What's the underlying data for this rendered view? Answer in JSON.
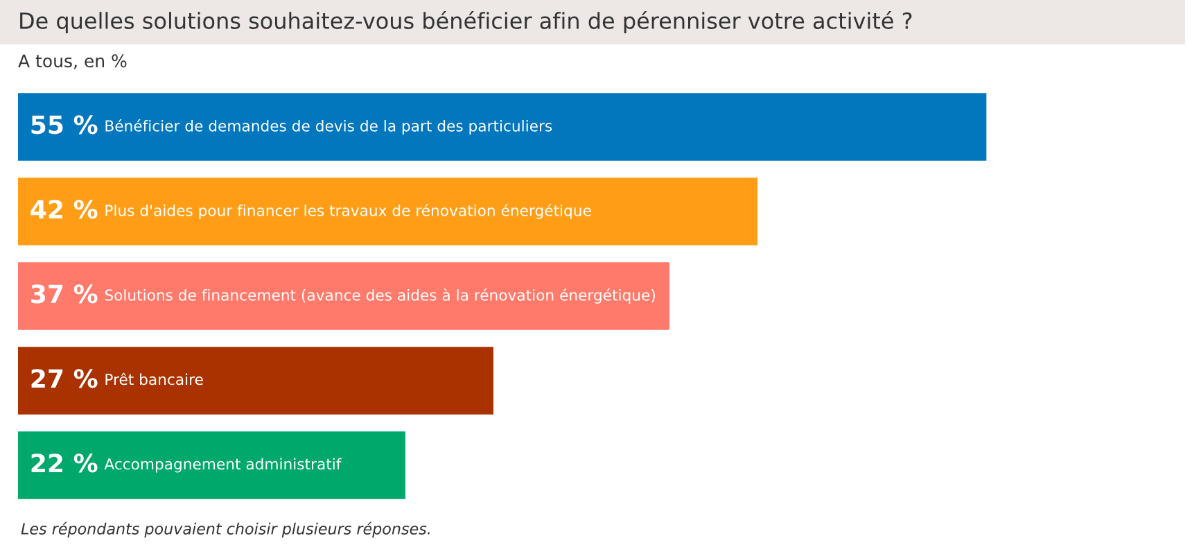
{
  "chart_data": {
    "type": "bar",
    "orientation": "horizontal",
    "title": "De quelles solutions souhaitez-vous bénéficier afin de pérenniser votre activité ?",
    "subtitle": "A tous, en %",
    "categories": [
      "Bénéficier de demandes de devis de la part des particuliers",
      "Plus d'aides pour financer les travaux de rénovation énergétique",
      "Solutions de financement (avance des aides à la rénovation énergétique)",
      "Prêt bancaire",
      "Accompagnement administratif"
    ],
    "values": [
      55,
      42,
      37,
      27,
      22
    ],
    "value_labels": [
      "55 %",
      "42 %",
      "37 %",
      "27 %",
      "22 %"
    ],
    "colors": [
      "#0277bd",
      "#ff9e16",
      "#ff7a6b",
      "#a93200",
      "#00a86b"
    ],
    "annotations": [
      "Les répondants pouvaient choisir plusieurs réponses."
    ],
    "legend": false
  }
}
